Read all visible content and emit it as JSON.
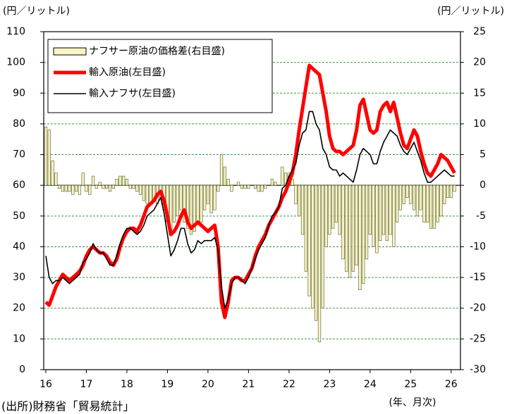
{
  "chart_data": {
    "type": "bar",
    "ylabel": "(円／リットル)",
    "y2label": "(円／リットル)",
    "xlabel": "(年、月次)",
    "source": "(出所)財務省「貿易統計」",
    "categories": [
      "16",
      null,
      null,
      null,
      null,
      null,
      null,
      null,
      null,
      null,
      null,
      null,
      "17",
      null,
      null,
      null,
      null,
      null,
      null,
      null,
      null,
      null,
      null,
      null,
      "18",
      null,
      null,
      null,
      null,
      null,
      null,
      null,
      null,
      null,
      null,
      null,
      "19",
      null,
      null,
      null,
      null,
      null,
      null,
      null,
      null,
      null,
      null,
      null,
      "20",
      null,
      null,
      null,
      null,
      null,
      null,
      null,
      null,
      null,
      null,
      null,
      "21",
      null,
      null,
      null,
      null,
      null,
      null,
      null,
      null,
      null,
      null,
      null,
      "22",
      null,
      null,
      null,
      null,
      null,
      null,
      null,
      null,
      null,
      null,
      null,
      "23",
      null,
      null,
      null,
      null,
      null,
      null,
      null,
      null,
      null,
      null,
      null,
      "24",
      null,
      null,
      null,
      null,
      null,
      null,
      null,
      null,
      null,
      null,
      null,
      "25",
      null,
      null,
      null,
      null,
      null,
      null,
      null,
      null,
      null,
      null,
      null,
      "26",
      null
    ],
    "series": [
      {
        "name": "ナフサー原油の価格差(右目盛)",
        "type": "bar",
        "axis": "y2",
        "color": "#f7f5c6",
        "values": [
          9.5,
          9,
          4,
          2,
          -0.5,
          -1,
          -1,
          -1,
          -1.5,
          -1,
          -1.5,
          2,
          -1,
          -1.5,
          1.5,
          -0.5,
          0.5,
          -0.5,
          -0.5,
          -1,
          -0.5,
          1,
          1.5,
          1.5,
          1,
          -0.5,
          -0.5,
          -1,
          -1.5,
          -2.5,
          -3,
          -3,
          -2.5,
          -3,
          -2,
          -4,
          -6,
          -7.5,
          -6,
          -5,
          -4,
          -6,
          -7,
          -8,
          -7.5,
          -6,
          -6,
          -4,
          -3,
          -4.5,
          -4,
          -1,
          5,
          3,
          1,
          -1,
          0,
          0.5,
          -0.5,
          -0.5,
          -0.5,
          0,
          -0.5,
          -1,
          -1,
          -0.5,
          0,
          1,
          0.5,
          0,
          3,
          2,
          2,
          1,
          -3,
          -5,
          -8,
          -14,
          -18,
          -20,
          -22,
          -25.5,
          -20,
          -10,
          -8,
          -7,
          -6,
          -8,
          -12,
          -14,
          -15,
          -14,
          -13,
          -17,
          -16,
          -12,
          -8,
          -10,
          -11,
          -9,
          -8,
          -9,
          -8,
          -10,
          -6,
          -4,
          -3,
          -2,
          -3,
          -4,
          -5,
          -4,
          -6,
          -6,
          -7,
          -7,
          -6,
          -5,
          -3,
          -2,
          -2,
          -1
        ]
      },
      {
        "name": "輸入原油(左目盛)",
        "type": "line",
        "color": "#ff0000",
        "values": [
          22,
          21,
          24,
          27,
          29,
          31,
          30,
          29,
          30,
          31,
          32,
          34,
          37,
          39,
          40,
          39,
          38,
          38,
          37,
          35,
          34,
          36,
          40,
          43,
          45,
          46,
          46,
          45,
          47,
          50,
          53,
          54,
          55,
          57,
          58,
          55,
          50,
          44,
          45,
          47,
          50,
          52,
          48,
          46,
          47,
          48,
          47,
          46,
          45,
          46,
          47,
          40,
          22,
          17,
          22,
          29,
          30,
          30,
          29,
          29,
          31,
          33,
          37,
          40,
          42,
          44,
          47,
          49,
          51,
          53,
          56,
          58,
          61,
          64,
          70,
          78,
          85,
          92,
          99,
          98,
          97,
          96,
          90,
          84,
          76,
          72,
          71,
          71,
          70,
          71,
          72,
          73,
          78,
          86,
          88,
          83,
          78,
          77,
          78,
          84,
          86,
          87,
          84,
          87,
          82,
          77,
          73,
          72,
          75,
          78,
          76,
          71,
          67,
          64,
          63,
          65,
          67,
          70,
          69,
          68,
          66,
          64
        ]
      },
      {
        "name": "輸入ナフサ(左目盛)",
        "type": "line",
        "color": "#000000",
        "values": [
          37,
          30,
          28,
          29,
          29,
          30,
          29,
          28,
          29,
          30,
          31,
          35,
          36,
          38,
          41,
          39,
          38,
          38,
          36,
          34,
          34,
          37,
          41,
          44,
          46,
          46,
          45,
          44,
          45,
          47,
          50,
          51,
          52,
          54,
          56,
          51,
          44,
          37,
          39,
          42,
          46,
          46,
          41,
          38,
          39,
          42,
          41,
          42,
          42,
          42,
          43,
          39,
          27,
          20,
          23,
          28,
          30,
          30,
          29,
          28,
          30,
          33,
          36,
          39,
          41,
          43,
          47,
          50,
          51,
          53,
          59,
          60,
          63,
          65,
          67,
          73,
          77,
          78,
          84,
          84,
          80,
          78,
          72,
          70,
          66,
          65,
          65,
          63,
          64,
          63,
          62,
          61,
          65,
          70,
          72,
          71,
          70,
          67,
          67,
          71,
          74,
          76,
          78,
          77,
          76,
          73,
          71,
          70,
          72,
          74,
          71,
          68,
          64,
          61,
          61,
          62,
          63,
          64,
          65,
          64,
          63,
          63
        ]
      }
    ],
    "ylim": [
      0,
      110
    ],
    "yticks": [
      0,
      10,
      20,
      30,
      40,
      50,
      60,
      70,
      80,
      90,
      100,
      110
    ],
    "y2lim": [
      -30,
      25
    ],
    "y2ticks": [
      -30,
      -25,
      -20,
      -15,
      -10,
      -5,
      0,
      5,
      10,
      15,
      20,
      25
    ],
    "grid": true,
    "legend": "upper left"
  }
}
